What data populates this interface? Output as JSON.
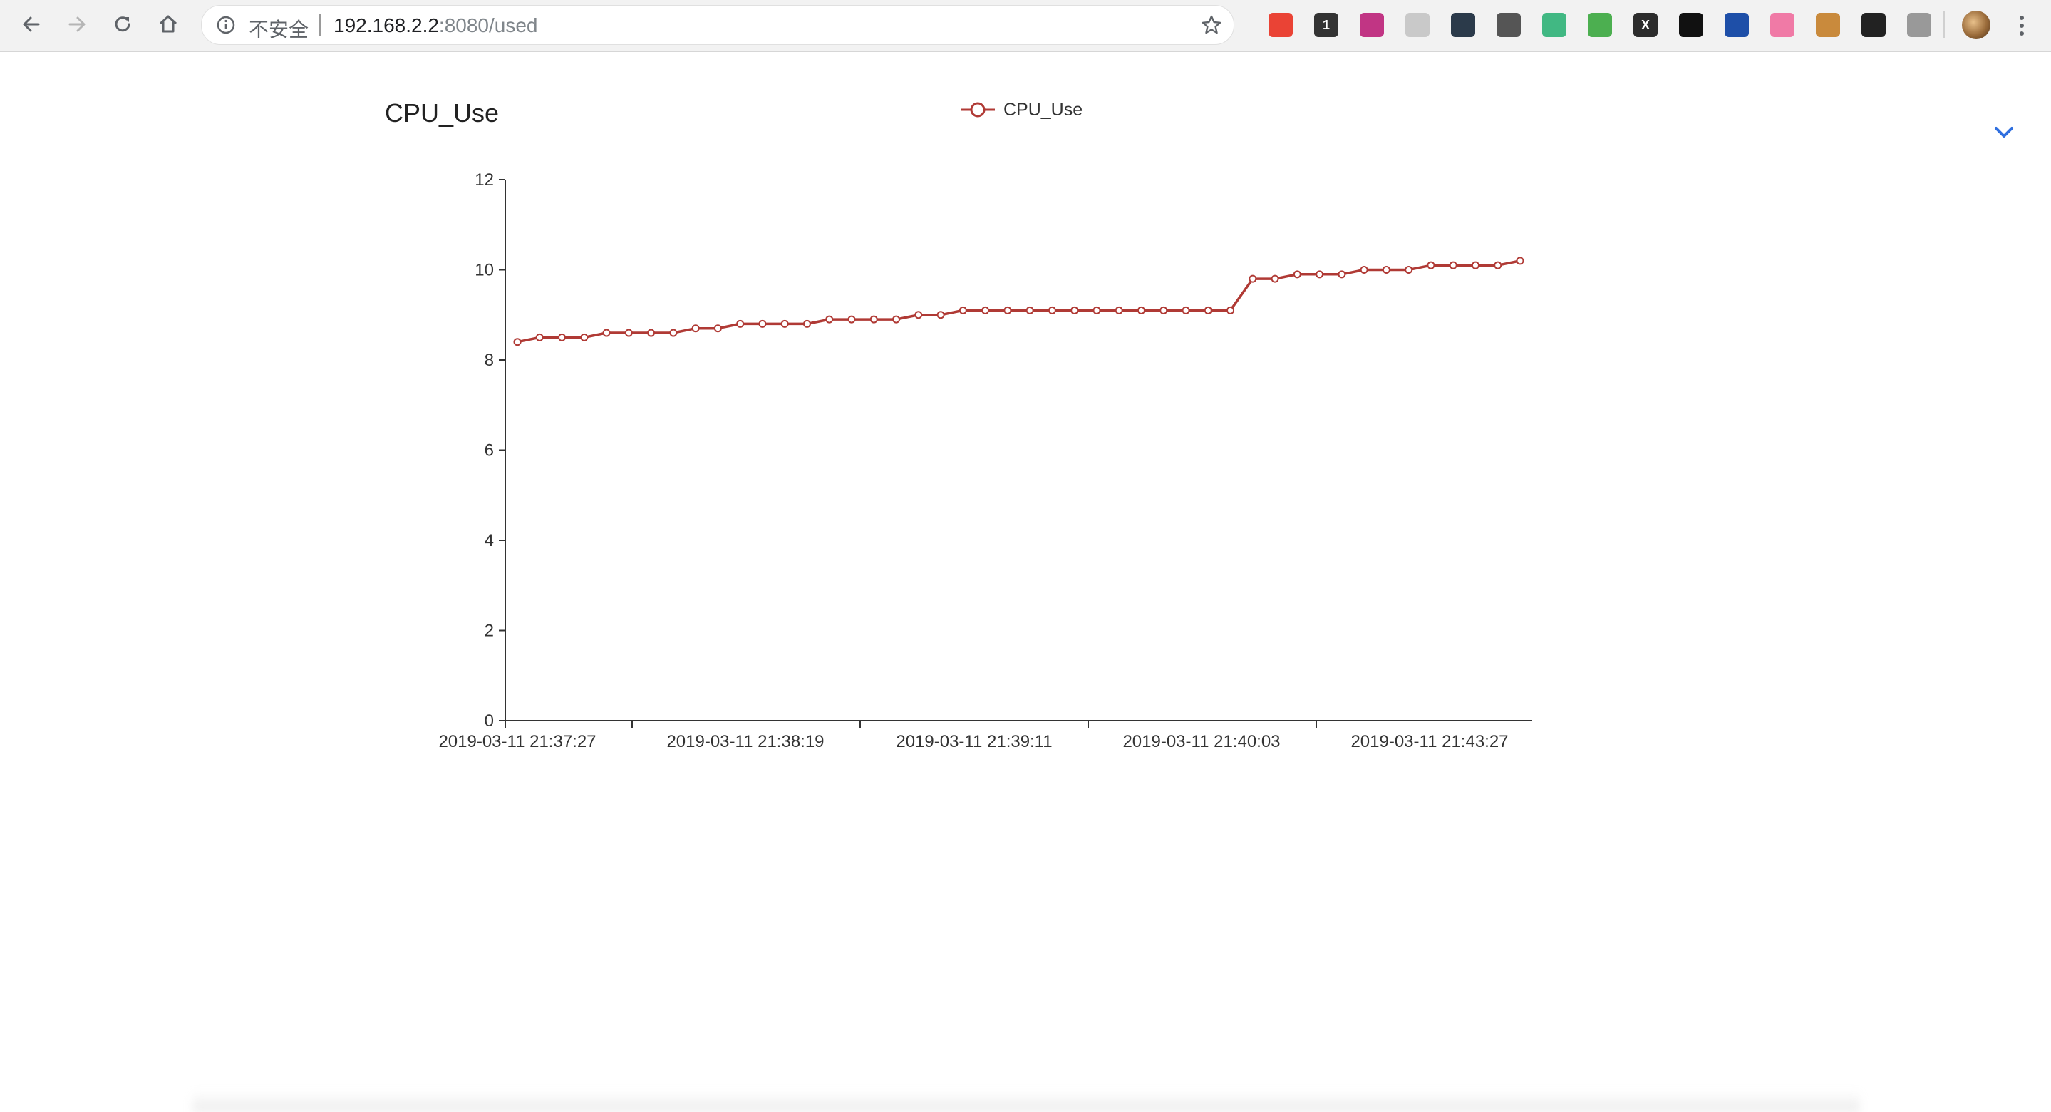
{
  "browser": {
    "security_label": "不安全",
    "url_host": "192.168.2.2",
    "url_rest": ":8080/used",
    "extensions": [
      {
        "icon": "google-photos-icon",
        "label": ""
      },
      {
        "icon": "panda-icon",
        "label": "1"
      },
      {
        "icon": "instagram-icon",
        "label": ""
      },
      {
        "icon": "tree-icon",
        "label": ""
      },
      {
        "icon": "telegram-icon",
        "label": ""
      },
      {
        "icon": "json-braces-icon",
        "label": ""
      },
      {
        "icon": "vue-icon",
        "label": ""
      },
      {
        "icon": "shield-check-icon",
        "label": ""
      },
      {
        "icon": "x-box-icon",
        "label": "X"
      },
      {
        "icon": "chevron-left-icon",
        "label": ""
      },
      {
        "icon": "crop-icon",
        "label": ""
      },
      {
        "icon": "bilibili-icon",
        "label": ""
      },
      {
        "icon": "cookie-icon",
        "label": ""
      },
      {
        "icon": "glasses-icon",
        "label": ""
      },
      {
        "icon": "vuetify-icon",
        "label": ""
      }
    ]
  },
  "chart_data": {
    "type": "line",
    "title": "CPU_Use",
    "legend": "CPU_Use",
    "legend_position": "top-center",
    "x_tick_labels": [
      "2019-03-11 21:37:27",
      "2019-03-11 21:38:19",
      "2019-03-11 21:39:11",
      "2019-03-11 21:40:03",
      "2019-03-11 21:43:27"
    ],
    "y_ticks": [
      0,
      2,
      4,
      6,
      8,
      10,
      12
    ],
    "ylim": [
      0,
      12
    ],
    "grid": false,
    "series": [
      {
        "name": "CPU_Use",
        "color": "#b03a35",
        "values": [
          8.4,
          8.5,
          8.5,
          8.5,
          8.6,
          8.6,
          8.6,
          8.6,
          8.7,
          8.7,
          8.8,
          8.8,
          8.8,
          8.8,
          8.9,
          8.9,
          8.9,
          8.9,
          9.0,
          9.0,
          9.1,
          9.1,
          9.1,
          9.1,
          9.1,
          9.1,
          9.1,
          9.1,
          9.1,
          9.1,
          9.1,
          9.1,
          9.1,
          9.8,
          9.8,
          9.9,
          9.9,
          9.9,
          10.0,
          10.0,
          10.0,
          10.1,
          10.1,
          10.1,
          10.1,
          10.2
        ]
      }
    ]
  }
}
